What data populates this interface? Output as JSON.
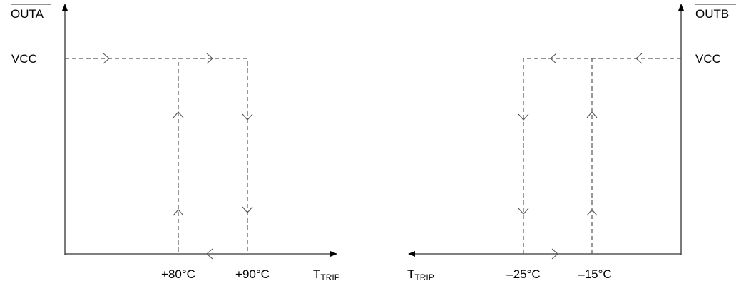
{
  "left_plot": {
    "y_label": "OUTA",
    "y_label_overbar": true,
    "vcc_label": "VCC",
    "x_label_main": "T",
    "x_label_sub": "TRIP",
    "thresholds": [
      "+80°C",
      "+90°C"
    ]
  },
  "right_plot": {
    "y_label": "OUTB",
    "y_label_overbar": true,
    "vcc_label": "VCC",
    "x_label_main": "T",
    "x_label_sub": "TRIP",
    "thresholds": [
      "–25°C",
      "–15°C"
    ]
  }
}
